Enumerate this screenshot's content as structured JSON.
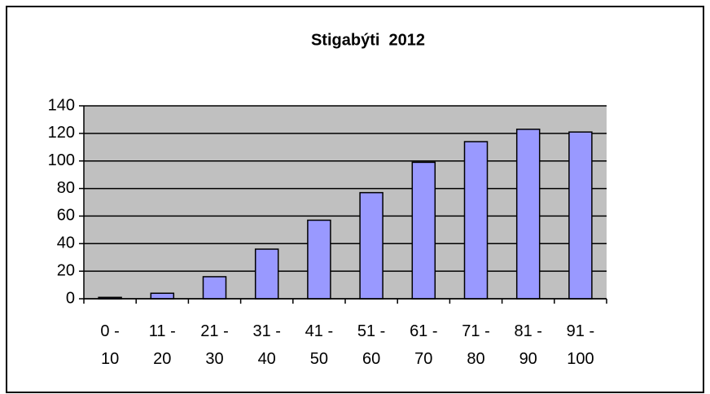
{
  "chart_data": {
    "type": "bar",
    "title": "Stigabýti  2012",
    "categories": [
      "0 - 10",
      "11 - 20",
      "21 - 30",
      "31 - 40",
      "41 - 50",
      "51 - 60",
      "61 - 70",
      "71 - 80",
      "81 - 90",
      "91 - 100"
    ],
    "values": [
      1,
      4,
      16,
      36,
      57,
      77,
      99,
      114,
      123,
      121
    ],
    "color": "#9999ff",
    "plot_background": "#c0c0c0",
    "ylim": [
      0,
      140
    ],
    "yticks": [
      0,
      20,
      40,
      60,
      80,
      100,
      120,
      140
    ],
    "grid": true
  }
}
